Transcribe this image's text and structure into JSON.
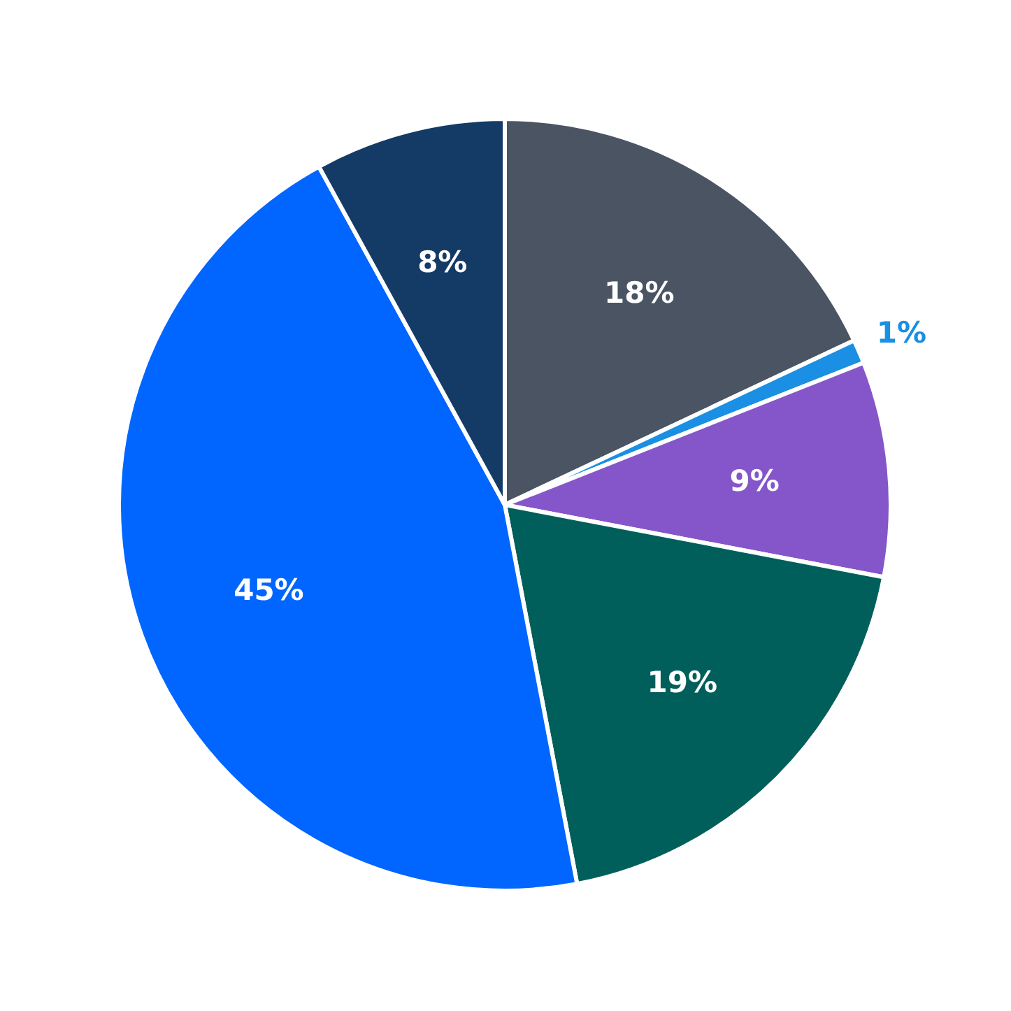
{
  "chart_data": {
    "type": "pie",
    "categories": [
      null,
      null,
      null,
      null,
      null,
      null
    ],
    "values": [
      18,
      1,
      9,
      19,
      45,
      8
    ],
    "colors": [
      "#4a5463",
      "#1a8fe3",
      "#8556c9",
      "#005f5b",
      "#0066ff",
      "#143a66"
    ],
    "value_labels": [
      "18%",
      "1%",
      "9%",
      "19%",
      "45%",
      "8%"
    ]
  }
}
